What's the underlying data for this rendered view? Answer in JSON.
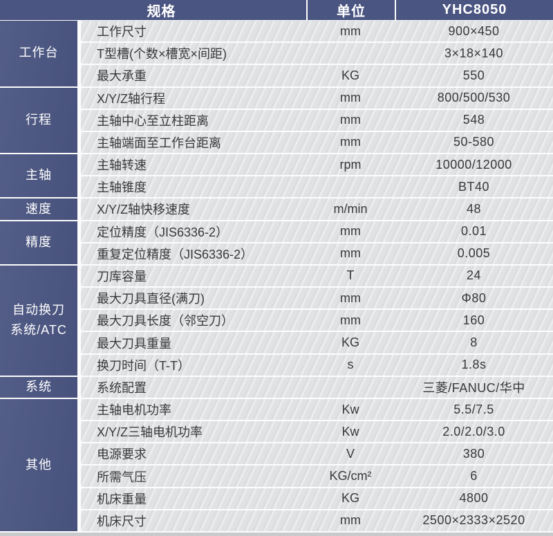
{
  "colors": {
    "header_bg": "#4a5581",
    "category_bg": "#4a5581",
    "row_bg": "#e1e2e4",
    "text": "#38393b",
    "header_text": "#ffffff",
    "bottom_strip": "#c8cacc"
  },
  "table": {
    "header": {
      "spec_label": "规格",
      "unit_label": "单位",
      "model_label": "YHC8050"
    },
    "groups": [
      {
        "category": "工作台",
        "rows": [
          {
            "spec": "工作尺寸",
            "unit": "mm",
            "value": "900×450"
          },
          {
            "spec": "T型槽(个数×槽宽×间距)",
            "unit": "",
            "value": "3×18×140"
          },
          {
            "spec": "最大承重",
            "unit": "KG",
            "value": "550"
          }
        ]
      },
      {
        "category": "行程",
        "rows": [
          {
            "spec": "X/Y/Z轴行程",
            "unit": "mm",
            "value": "800/500/530"
          },
          {
            "spec": "主轴中心至立柱距离",
            "unit": "mm",
            "value": "548"
          },
          {
            "spec": "主轴端面至工作台距离",
            "unit": "mm",
            "value": "50-580"
          }
        ]
      },
      {
        "category": "主轴",
        "rows": [
          {
            "spec": "主轴转速",
            "unit": "rpm",
            "value": "10000/12000"
          },
          {
            "spec": "主轴锥度",
            "unit": "",
            "value": "BT40"
          }
        ]
      },
      {
        "category": "速度",
        "rows": [
          {
            "spec": "X/Y/Z轴快移速度",
            "unit": "m/min",
            "value": "48"
          }
        ]
      },
      {
        "category": "精度",
        "rows": [
          {
            "spec": "定位精度（JIS6336-2）",
            "unit": "mm",
            "value": "0.01"
          },
          {
            "spec": "重复定位精度（JIS6336-2）",
            "unit": "mm",
            "value": "0.005"
          }
        ]
      },
      {
        "category": "自动换刀系统/ATC",
        "category_lines": [
          "自动换刀",
          "系统/ATC"
        ],
        "rows": [
          {
            "spec": "刀库容量",
            "unit": "T",
            "value": "24"
          },
          {
            "spec": "最大刀具直径(满刀)",
            "unit": "mm",
            "value": "Φ80"
          },
          {
            "spec": "最大刀具长度（邻空刀）",
            "unit": "mm",
            "value": "160"
          },
          {
            "spec": "最大刀具重量",
            "unit": "KG",
            "value": "8"
          },
          {
            "spec": "换刀时间（T-T）",
            "unit": "s",
            "value": "1.8s"
          }
        ]
      },
      {
        "category": "系统",
        "rows": [
          {
            "spec": "系统配置",
            "unit": "",
            "value": "三菱/FANUC/华中"
          }
        ]
      },
      {
        "category": "其他",
        "rows": [
          {
            "spec": "主轴电机功率",
            "unit": "Kw",
            "value": "5.5/7.5"
          },
          {
            "spec": "X/Y/Z三轴电机功率",
            "unit": "Kw",
            "value": "2.0/2.0/3.0"
          },
          {
            "spec": "电源要求",
            "unit": "V",
            "value": "380"
          },
          {
            "spec": "所需气压",
            "unit": "KG/cm²",
            "value": "6"
          },
          {
            "spec": "机床重量",
            "unit": "KG",
            "value": "4800"
          },
          {
            "spec": "机床尺寸",
            "unit": "mm",
            "value": "2500×2333×2520"
          }
        ]
      }
    ]
  }
}
